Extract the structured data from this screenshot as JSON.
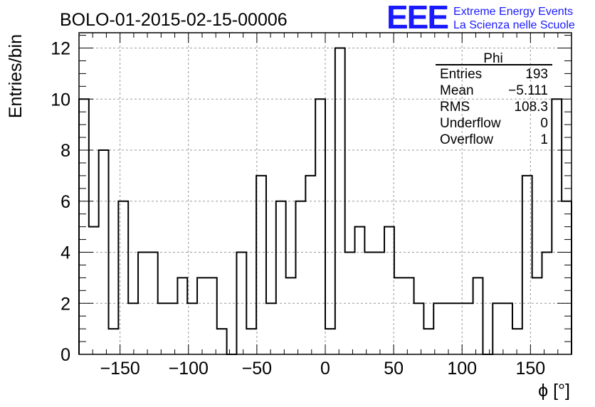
{
  "title": "BOLO-01-2015-02-15-00006",
  "logo": {
    "text": "EEE",
    "line1": "Extreme Energy Events",
    "line2": "La Scienza nelle Scuole",
    "color": "#1a1aff"
  },
  "stats": {
    "name": "Phi",
    "rows": [
      {
        "label": "Entries",
        "value": "193"
      },
      {
        "label": "Mean",
        "value": "−5.111"
      },
      {
        "label": "RMS",
        "value": "108.3"
      },
      {
        "label": "Underflow",
        "value": "0"
      },
      {
        "label": "Overflow",
        "value": "1"
      }
    ]
  },
  "chart_data": {
    "type": "bar",
    "histogram": true,
    "xlabel": "ϕ [°]",
    "ylabel": "Entries/bin",
    "xlim": [
      -180,
      180
    ],
    "ylim": [
      0,
      12.6
    ],
    "xticks": [
      -150,
      -100,
      -50,
      0,
      50,
      100,
      150
    ],
    "xtick_labels": [
      "−150",
      "−100",
      "−50",
      "0",
      "50",
      "100",
      "150"
    ],
    "yticks": [
      0,
      2,
      4,
      6,
      8,
      10,
      12
    ],
    "grid": true,
    "bin_edges": [
      -180,
      -172.8,
      -165.6,
      -158.4,
      -151.2,
      -144,
      -136.8,
      -129.6,
      -122.4,
      -115.2,
      -108,
      -100.8,
      -93.6,
      -86.4,
      -79.2,
      -72,
      -64.8,
      -57.6,
      -50.4,
      -43.2,
      -36,
      -28.8,
      -21.6,
      -14.4,
      -7.2,
      0,
      7.2,
      14.4,
      21.6,
      28.8,
      36,
      43.2,
      50.4,
      57.6,
      64.8,
      72,
      79.2,
      86.4,
      93.6,
      100.8,
      108,
      115.2,
      122.4,
      129.6,
      136.8,
      144,
      151.2,
      158.4,
      165.6,
      172.8,
      180
    ],
    "values": [
      10,
      5,
      8,
      1,
      6,
      2,
      4,
      4,
      2,
      2,
      3,
      2,
      3,
      3,
      1,
      0,
      4,
      1,
      7,
      2,
      6,
      3,
      6,
      7,
      10,
      1,
      12,
      4,
      5,
      4,
      4,
      5,
      3,
      3,
      2,
      1,
      2,
      2,
      2,
      2,
      3,
      0,
      2,
      2,
      1,
      7,
      3,
      4,
      10,
      6
    ]
  }
}
